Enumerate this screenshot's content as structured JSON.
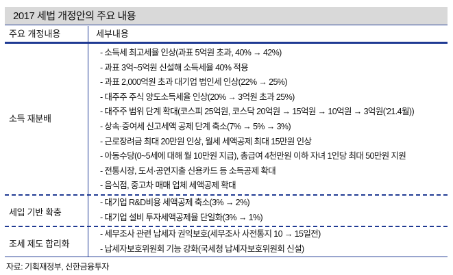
{
  "title": "2017 세법 개정안의 주요 내용",
  "header": {
    "col1": "주요 개정내용",
    "col2": "세부내용"
  },
  "sections": [
    {
      "category": "소득 재분배",
      "items": [
        "- 소득세 최고세율 인상(과표 5억원 초과, 40% → 42%)",
        "- 과표 3억~5억원 신설해 소득세율 40% 적용",
        "- 과표 2,000억원 초과 대기업 법인세 인상(22% → 25%)",
        "- 대주주 주식 양도소득세율 인상(20% → 3억원 초과 25%)",
        "- 대주주 범위 단계 확대(코스피 25억원, 코스닥 20억원 → 15억원 → 10억원 → 3억원('21.4월))",
        "- 상속·증여세 신고세액 공제 단계 축소(7% → 5% → 3%)",
        "- 근로장려금 최대 20만원 인상, 월세 세액공제 최대 15만원 인상",
        "- 아동수당(0~5세에 대해 월 10만원 지급), 총급여 4천만원 이하 자녀 1인당 최대 50만원 지원",
        "- 전통시장, 도서·공연지출 신용카드 등 소득공제 확대",
        "- 음식점, 중고차 매매 업체 세액공제 확대"
      ]
    },
    {
      "category": "세입 기반 확충",
      "items": [
        "- 대기업 R&D비용 세액공제 축소(3% → 2%)",
        "- 대기업 설비 투자세액공제율 단일화(3% → 1%)"
      ]
    },
    {
      "category": "조세 제도 합리화",
      "items": [
        "- 세무조사 관련 납세자 권익보호(세무조사 사전통지 10 → 15일전)",
        "- 납세자보호위원회 기능 강화(국세청 납세자보호위원회 신설)"
      ]
    }
  ],
  "source": "자료: 기획재정부, 신한금융투자"
}
